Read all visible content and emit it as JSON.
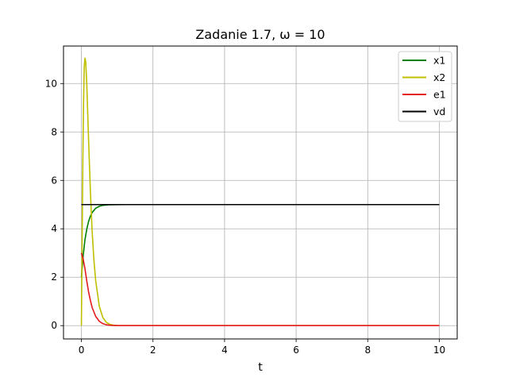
{
  "chart_data": {
    "type": "line",
    "title": "Zadanie 1.7, ω = 10",
    "xlabel": "t",
    "ylabel": "",
    "xlim": [
      -0.5,
      10.5
    ],
    "ylim": [
      -0.55,
      11.55
    ],
    "xticks": [
      0,
      2,
      4,
      6,
      8,
      10
    ],
    "yticks": [
      0,
      2,
      4,
      6,
      8,
      10
    ],
    "grid": true,
    "legend_position": "top-right",
    "series": [
      {
        "name": "x1",
        "color": "#008000",
        "x": [
          0,
          0.05,
          0.1,
          0.15,
          0.2,
          0.25,
          0.3,
          0.4,
          0.5,
          0.6,
          0.7,
          0.8,
          1.0,
          1.2,
          1.5,
          2.0,
          3.0,
          5.0,
          10.0
        ],
        "y": [
          2.0,
          2.9,
          3.55,
          3.98,
          4.3,
          4.52,
          4.67,
          4.85,
          4.93,
          4.97,
          4.985,
          4.993,
          4.998,
          5.0,
          5.0,
          5.0,
          5.0,
          5.0,
          5.0
        ]
      },
      {
        "name": "x2",
        "color": "#bfbf00",
        "x": [
          0,
          0.02,
          0.04,
          0.06,
          0.08,
          0.1,
          0.12,
          0.15,
          0.2,
          0.25,
          0.3,
          0.35,
          0.4,
          0.5,
          0.6,
          0.7,
          0.8,
          0.9,
          1.0,
          1.2,
          1.5,
          2.0,
          5.0,
          10.0
        ],
        "y": [
          0.0,
          3.5,
          6.8,
          9.2,
          10.7,
          11.05,
          10.9,
          10.0,
          7.7,
          5.6,
          3.9,
          2.7,
          1.85,
          0.8,
          0.33,
          0.13,
          0.05,
          0.02,
          0.0,
          0.0,
          0.0,
          0.0,
          0.0,
          0.0
        ]
      },
      {
        "name": "e1",
        "color": "#e41a1c",
        "x": [
          0,
          0.05,
          0.1,
          0.15,
          0.2,
          0.25,
          0.3,
          0.4,
          0.5,
          0.6,
          0.7,
          0.8,
          1.0,
          1.2,
          1.5,
          2.0,
          5.0,
          10.0
        ],
        "y": [
          3.0,
          2.75,
          2.35,
          1.85,
          1.4,
          1.05,
          0.75,
          0.38,
          0.18,
          0.08,
          0.035,
          0.015,
          0.0,
          0.0,
          0.0,
          0.0,
          0.0,
          0.0
        ]
      },
      {
        "name": "vd",
        "color": "#000000",
        "x": [
          0,
          10
        ],
        "y": [
          5,
          5
        ]
      }
    ]
  }
}
